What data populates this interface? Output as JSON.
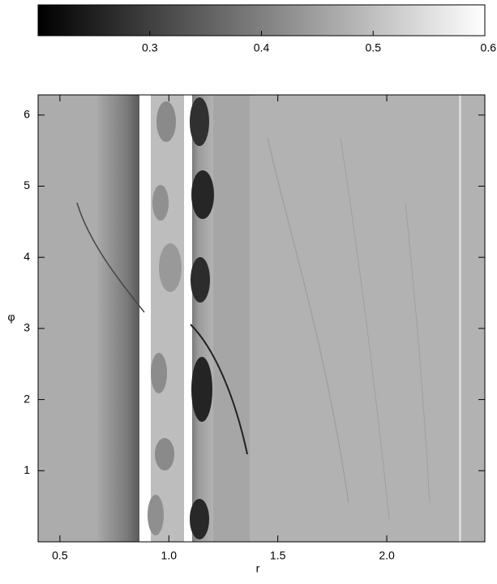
{
  "chart_data": {
    "type": "heatmap",
    "colormap": [
      "#000000",
      "#ffffff"
    ],
    "colorbar": {
      "clim": [
        0.2,
        0.6
      ],
      "ticks": [
        0.3,
        0.4,
        0.5,
        0.6
      ]
    },
    "xlabel": "r",
    "ylabel": "φ",
    "xlim": [
      0.4,
      2.45
    ],
    "xticks": [
      {
        "value": 0.5,
        "label": "0.5"
      },
      {
        "value": 1.0,
        "label": "1.0"
      },
      {
        "value": 1.5,
        "label": "1.5"
      },
      {
        "value": 2.0,
        "label": "2.0"
      }
    ],
    "ylim": [
      0,
      6.283
    ],
    "yticks": [
      1,
      2,
      3,
      4,
      5,
      6
    ]
  }
}
